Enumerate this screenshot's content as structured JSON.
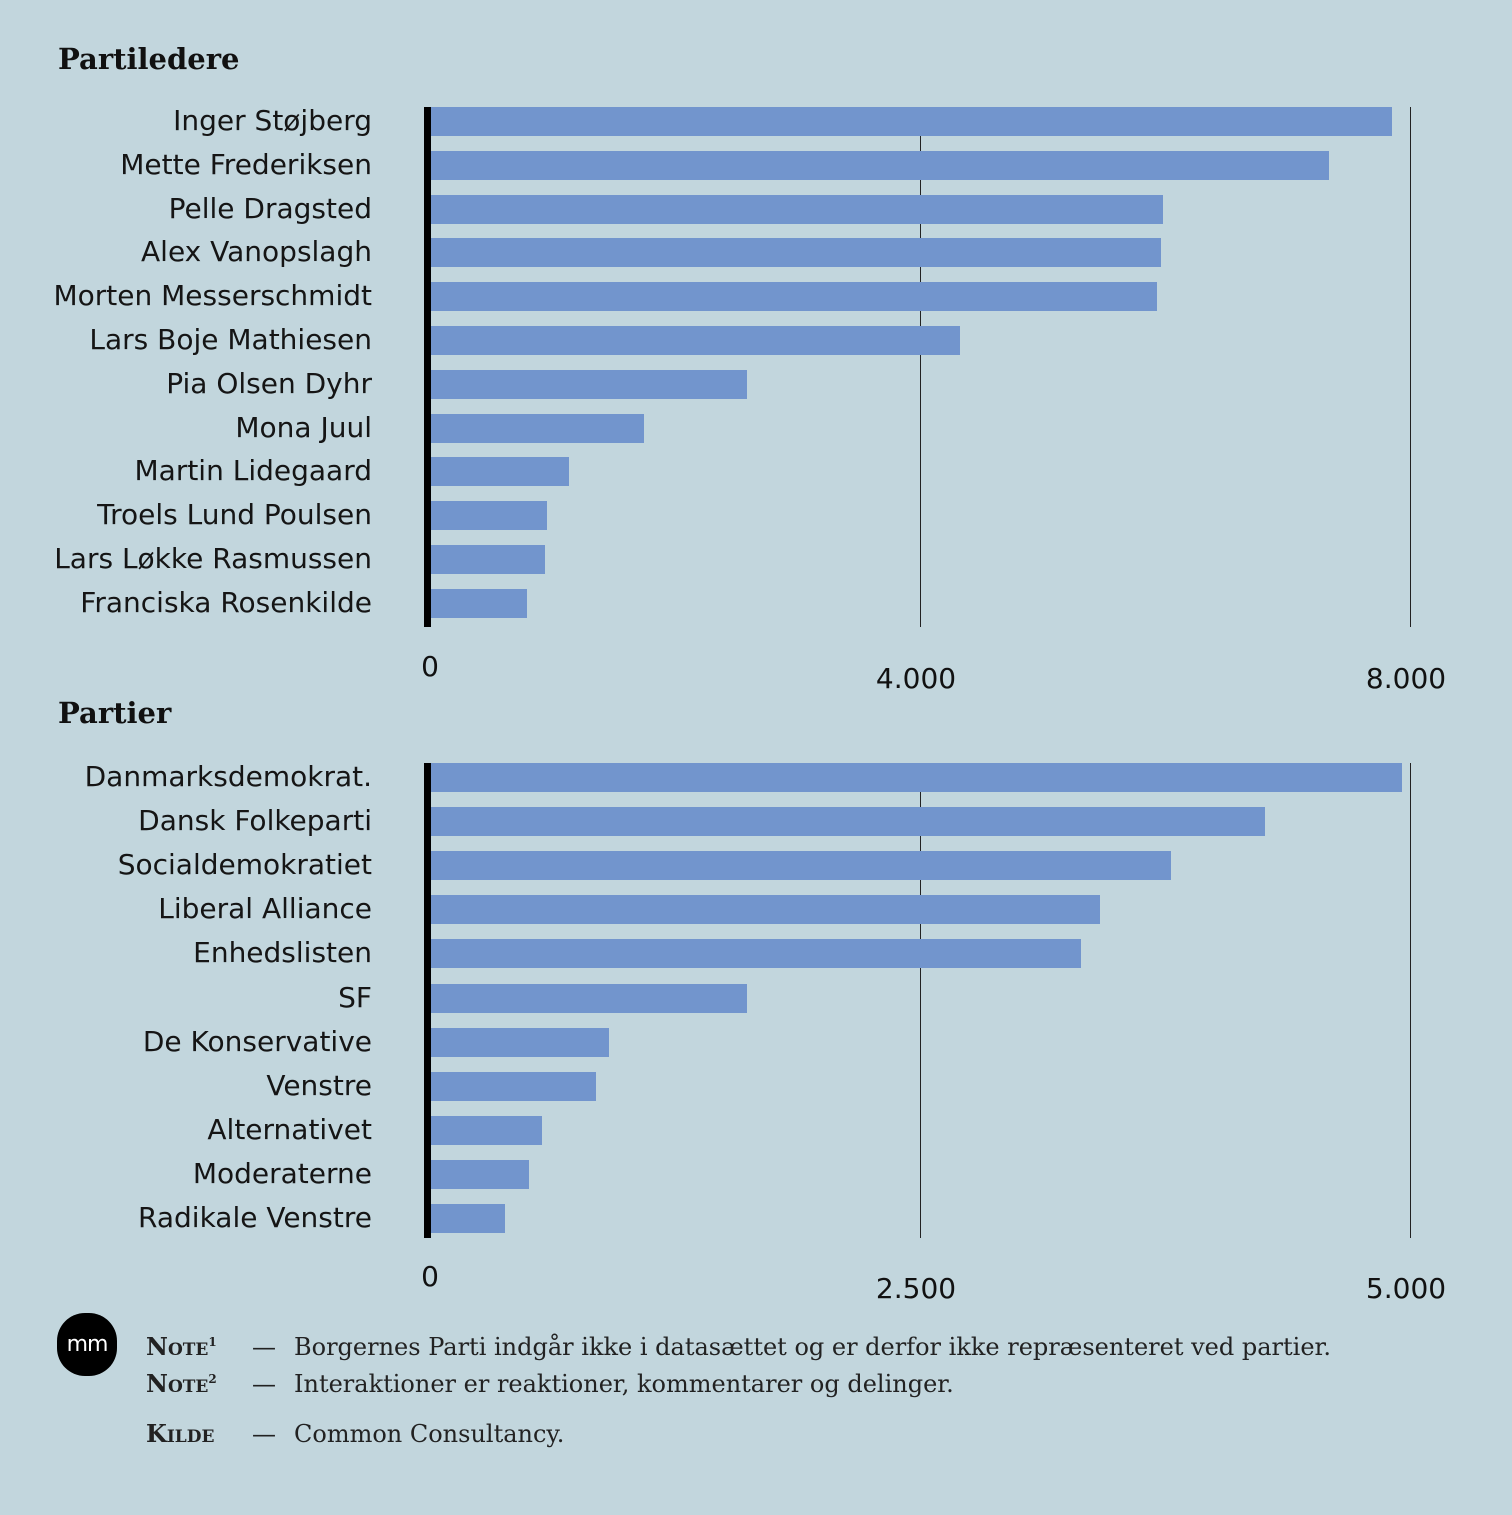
{
  "chart_data": [
    {
      "type": "bar",
      "orientation": "horizontal",
      "title": "Partiledere",
      "categories": [
        "Inger Støjberg",
        "Mette Frederiksen",
        "Pelle Dragsted",
        "Alex Vanopslagh",
        "Morten Messerschmidt",
        "Lars Boje Mathiesen",
        "Pia Olsen Dyhr",
        "Mona Juul",
        "Martin Lidegaard",
        "Troels Lund Poulsen",
        "Lars Løkke Rasmussen",
        "Franciska Rosenkilde"
      ],
      "values": [
        7850,
        7340,
        5980,
        5970,
        5935,
        4330,
        2590,
        1750,
        1135,
        955,
        940,
        790
      ],
      "xlim": [
        0,
        8000
      ],
      "ticks": [
        {
          "value": 0,
          "label": "0"
        },
        {
          "value": 4000,
          "label": "4.000"
        },
        {
          "value": 8000,
          "label": "8.000"
        }
      ],
      "grid": true,
      "color": "#7295cd"
    },
    {
      "type": "bar",
      "orientation": "horizontal",
      "title": "Partier",
      "categories": [
        "Danmarksdemokrat.",
        "Dansk Folkeparti",
        "Socialdemokratiet",
        "Liberal Alliance",
        "Enhedslisten",
        "SF",
        "De Konservative",
        "Venstre",
        "Alternativet",
        "Moderaterne",
        "Radikale Venstre"
      ],
      "values": [
        4960,
        4260,
        3780,
        3420,
        3320,
        1615,
        915,
        845,
        570,
        505,
        385
      ],
      "xlim": [
        0,
        5000
      ],
      "ticks": [
        {
          "value": 0,
          "label": "0"
        },
        {
          "value": 2500,
          "label": "2.500"
        },
        {
          "value": 5000,
          "label": "5.000"
        }
      ],
      "grid": true,
      "color": "#7295cd"
    }
  ],
  "footer": {
    "logo": "mm",
    "notes": [
      {
        "key": "Note",
        "sup": "1",
        "dash": "—",
        "text": "Borgernes Parti indgår ikke i datasættet og er derfor ikke repræsenteret ved partier."
      },
      {
        "key": "Note",
        "sup": "2",
        "dash": "—",
        "text": "Interaktioner er reaktioner, kommentarer og delinger."
      },
      {
        "key": "Kilde",
        "sup": "",
        "dash": "—",
        "text": "Common Consultancy."
      }
    ]
  }
}
